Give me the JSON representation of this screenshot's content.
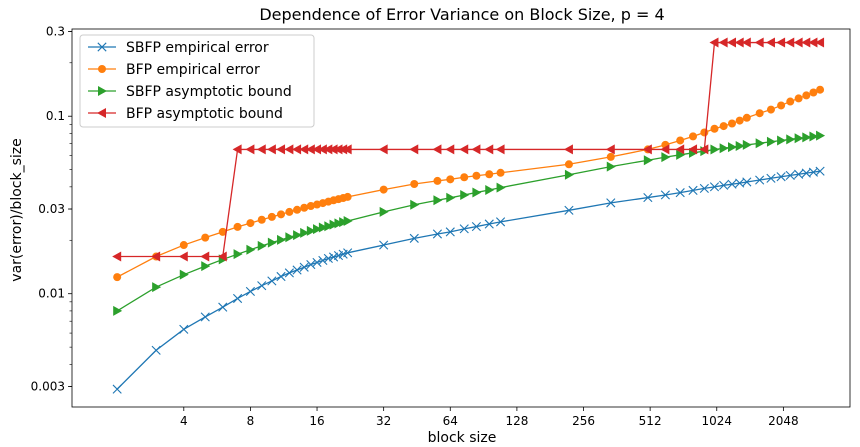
{
  "chart_data": {
    "type": "line",
    "title": "Dependence of Error Variance on Block Size, p = 4",
    "xlabel": "block size",
    "ylabel": "var(error)/block_size",
    "xscale": "log2",
    "yscale": "log",
    "xlim": [
      1.25,
      4096
    ],
    "ylim": [
      0.0023,
      0.31
    ],
    "xticks": [
      4,
      8,
      16,
      32,
      64,
      128,
      256,
      512,
      1024,
      2048
    ],
    "xtick_labels": [
      "4",
      "8",
      "16",
      "32",
      "64",
      "128",
      "256",
      "512",
      "1024",
      "2048"
    ],
    "yticks": [
      0.003,
      0.01,
      0.03,
      0.1,
      0.3
    ],
    "ytick_labels": [
      "0.003",
      "0.01",
      "0.03",
      "0.1",
      "0.3"
    ],
    "grid": false,
    "legend_position": "top-left",
    "series": [
      {
        "name": "SBFP empirical error",
        "color": "#1f77b4",
        "marker": "x",
        "x": [
          2,
          3,
          4,
          5,
          6,
          7,
          8,
          9,
          10,
          11,
          12,
          13,
          14,
          15,
          16,
          17,
          18,
          19,
          20,
          21,
          22,
          32,
          44,
          56,
          64,
          74,
          84,
          96,
          108,
          220,
          340,
          500,
          600,
          700,
          800,
          900,
          1000,
          1100,
          1200,
          1300,
          1400,
          1600,
          1800,
          2000,
          2200,
          2400,
          2600,
          2800,
          3000
        ],
        "y": [
          0.0029,
          0.0048,
          0.0063,
          0.0074,
          0.0084,
          0.0094,
          0.0103,
          0.0111,
          0.0118,
          0.0125,
          0.0131,
          0.0136,
          0.0141,
          0.0146,
          0.015,
          0.0154,
          0.0158,
          0.0161,
          0.0164,
          0.0167,
          0.017,
          0.0188,
          0.0205,
          0.0217,
          0.0223,
          0.0232,
          0.0239,
          0.0247,
          0.0254,
          0.0295,
          0.0325,
          0.0348,
          0.036,
          0.0371,
          0.0382,
          0.0392,
          0.04,
          0.0408,
          0.0414,
          0.042,
          0.0426,
          0.0437,
          0.0447,
          0.0456,
          0.0464,
          0.0471,
          0.0478,
          0.0484,
          0.049
        ]
      },
      {
        "name": "BFP empirical error",
        "color": "#ff7f0e",
        "marker": "o",
        "x": [
          2,
          3,
          4,
          5,
          6,
          7,
          8,
          9,
          10,
          11,
          12,
          13,
          14,
          15,
          16,
          17,
          18,
          19,
          20,
          21,
          22,
          32,
          44,
          56,
          64,
          74,
          84,
          96,
          108,
          220,
          340,
          500,
          600,
          700,
          800,
          900,
          1000,
          1100,
          1200,
          1300,
          1400,
          1600,
          1800,
          2000,
          2200,
          2400,
          2600,
          2800,
          3000
        ],
        "y": [
          0.0124,
          0.0162,
          0.0188,
          0.0207,
          0.0223,
          0.0238,
          0.025,
          0.0261,
          0.0271,
          0.028,
          0.0289,
          0.0297,
          0.0305,
          0.0312,
          0.0318,
          0.0324,
          0.033,
          0.0336,
          0.0341,
          0.0346,
          0.0351,
          0.0386,
          0.0415,
          0.0432,
          0.0441,
          0.0453,
          0.0462,
          0.0471,
          0.048,
          0.0536,
          0.059,
          0.065,
          0.069,
          0.073,
          0.077,
          0.081,
          0.085,
          0.088,
          0.091,
          0.0945,
          0.098,
          0.104,
          0.109,
          0.115,
          0.121,
          0.126,
          0.131,
          0.136,
          0.141
        ]
      },
      {
        "name": "SBFP asymptotic bound",
        "color": "#2ca02c",
        "marker": ">",
        "x": [
          2,
          3,
          4,
          5,
          6,
          7,
          8,
          9,
          10,
          11,
          12,
          13,
          14,
          15,
          16,
          17,
          18,
          19,
          20,
          21,
          22,
          32,
          44,
          56,
          64,
          74,
          84,
          96,
          108,
          220,
          340,
          500,
          600,
          700,
          800,
          900,
          1000,
          1100,
          1200,
          1300,
          1400,
          1600,
          1800,
          2000,
          2200,
          2400,
          2600,
          2800,
          3000
        ],
        "y": [
          0.008,
          0.0109,
          0.0128,
          0.0143,
          0.0156,
          0.0167,
          0.0177,
          0.0186,
          0.0194,
          0.0201,
          0.0208,
          0.0214,
          0.022,
          0.0226,
          0.0231,
          0.0236,
          0.024,
          0.0245,
          0.0249,
          0.0253,
          0.0257,
          0.0289,
          0.0317,
          0.0336,
          0.0347,
          0.036,
          0.0372,
          0.0384,
          0.0396,
          0.0468,
          0.052,
          0.0565,
          0.0588,
          0.0606,
          0.0622,
          0.0636,
          0.0649,
          0.066,
          0.067,
          0.068,
          0.0689,
          0.0704,
          0.0718,
          0.073,
          0.0741,
          0.0751,
          0.076,
          0.0769,
          0.0777
        ]
      },
      {
        "name": "BFP asymptotic bound",
        "color": "#d62728",
        "marker": "<",
        "x": [
          2,
          3,
          4,
          5,
          6,
          7,
          8,
          9,
          10,
          11,
          12,
          13,
          14,
          15,
          16,
          17,
          18,
          19,
          20,
          21,
          22,
          32,
          44,
          56,
          64,
          74,
          84,
          96,
          108,
          220,
          340,
          500,
          600,
          700,
          800,
          900,
          1000,
          1100,
          1200,
          1300,
          1400,
          1600,
          1800,
          2000,
          2200,
          2400,
          2600,
          2800,
          3000
        ],
        "y": [
          0.0162,
          0.0162,
          0.0162,
          0.0162,
          0.0162,
          0.065,
          0.065,
          0.065,
          0.065,
          0.065,
          0.065,
          0.065,
          0.065,
          0.065,
          0.065,
          0.065,
          0.065,
          0.065,
          0.065,
          0.065,
          0.065,
          0.065,
          0.065,
          0.065,
          0.065,
          0.065,
          0.065,
          0.065,
          0.065,
          0.065,
          0.065,
          0.065,
          0.065,
          0.065,
          0.065,
          0.065,
          0.26,
          0.26,
          0.26,
          0.26,
          0.26,
          0.26,
          0.26,
          0.26,
          0.26,
          0.26,
          0.26,
          0.26,
          0.26
        ]
      }
    ]
  }
}
